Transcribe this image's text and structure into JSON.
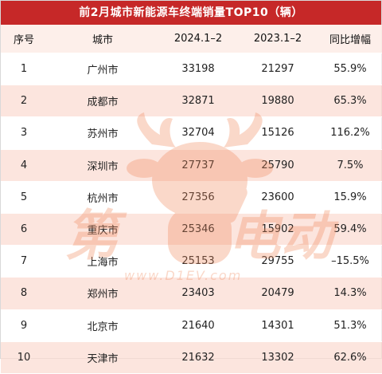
{
  "title": "前2月城市新能源车终端销量TOP10（辆）",
  "columns": [
    "序号",
    "城市",
    "2024.1–2",
    "2023.1–2",
    "同比增幅"
  ],
  "rows": [
    [
      "1",
      "广州市",
      "33198",
      "21297",
      "55.9%"
    ],
    [
      "2",
      "成都市",
      "32871",
      "19880",
      "65.3%"
    ],
    [
      "3",
      "苏州市",
      "32704",
      "15126",
      "116.2%"
    ],
    [
      "4",
      "深圳市",
      "27737",
      "25790",
      "7.5%"
    ],
    [
      "5",
      "杭州市",
      "27356",
      "23600",
      "15.9%"
    ],
    [
      "6",
      "重庆市",
      "25346",
      "15902",
      "59.4%"
    ],
    [
      "7",
      "上海市",
      "25153",
      "29755",
      "–15.5%"
    ],
    [
      "8",
      "郑州市",
      "23403",
      "20479",
      "14.3%"
    ],
    [
      "9",
      "北京市",
      "21640",
      "14301",
      "51.3%"
    ],
    [
      "10",
      "天津市",
      "21632",
      "13302",
      "62.6%"
    ]
  ],
  "watermark": {
    "text_left": "第",
    "text_right": "电动",
    "url": "www.D1EV.com",
    "color": "#f08a5d",
    "icon": "deer-mascot-icon"
  },
  "colors": {
    "title_bg": "#c62828",
    "header_bg": "#fdece6",
    "stripe_bg": "#fbdad0"
  }
}
